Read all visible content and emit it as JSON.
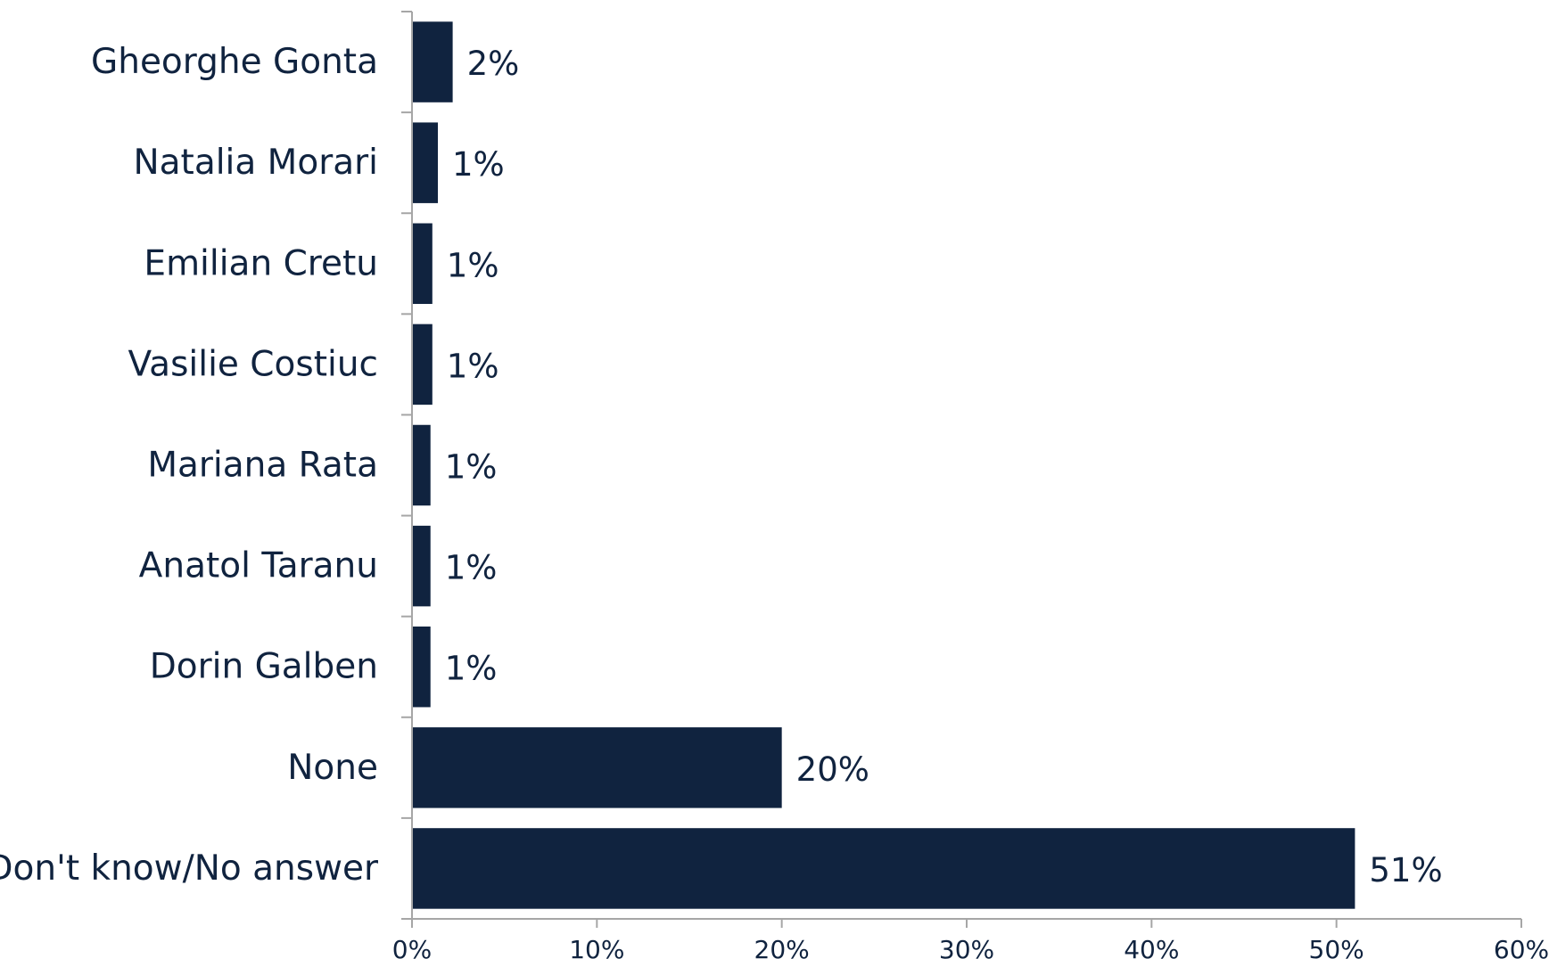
{
  "chart_data": {
    "type": "bar",
    "orientation": "horizontal",
    "categories": [
      "Gheorghe Gonta",
      "Natalia Morari",
      "Emilian Cretu",
      "Vasilie Costiuc",
      "Mariana Rata",
      "Anatol Taranu",
      "Dorin Galben",
      "None",
      "Don't know/No answer"
    ],
    "values": [
      2.2,
      1.4,
      1.1,
      1.1,
      1.0,
      1.0,
      1.0,
      20.0,
      51.0
    ],
    "value_labels": [
      "2%",
      "1%",
      "1%",
      "1%",
      "1%",
      "1%",
      "1%",
      "20%",
      "51%"
    ],
    "title": "",
    "xlabel": "",
    "ylabel": "",
    "xlim": [
      0,
      60
    ],
    "x_ticks": [
      0,
      10,
      20,
      30,
      40,
      50,
      60
    ],
    "x_tick_labels": [
      "0%",
      "10%",
      "20%",
      "30%",
      "40%",
      "50%",
      "60%"
    ],
    "grid": false,
    "legend": "none",
    "colors": {
      "bar": "#10233f",
      "text": "#10233f",
      "axis": "#a6a6a6"
    }
  }
}
